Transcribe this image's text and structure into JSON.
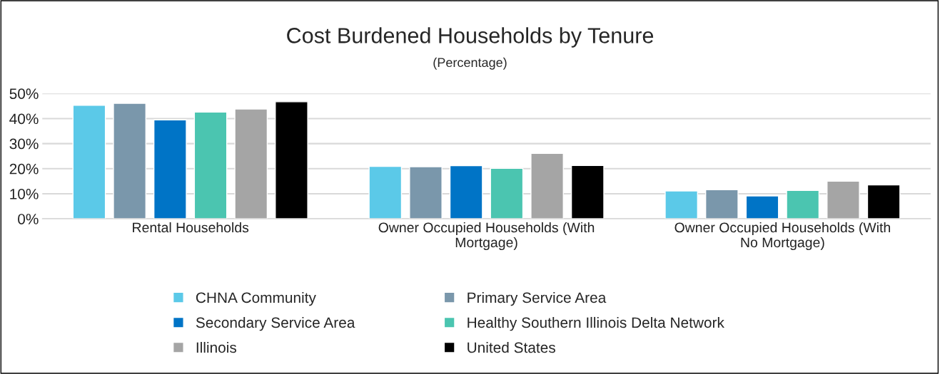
{
  "chart_data": {
    "type": "bar",
    "title": "Cost Burdened Households by Tenure",
    "subtitle": "(Percentage)",
    "categories": [
      "Rental Households",
      "Owner Occupied Households (With\nMortgage)",
      "Owner Occupied Households (With\nNo Mortgage)"
    ],
    "series": [
      {
        "name": "CHNA Community",
        "color": "#5bc9e8",
        "values": [
          45.3,
          20.9,
          11.1
        ]
      },
      {
        "name": "Primary Service Area",
        "color": "#7a97ab",
        "values": [
          46.1,
          20.8,
          11.6
        ]
      },
      {
        "name": "Secondary Service Area",
        "color": "#0074c6",
        "values": [
          39.5,
          21.2,
          9.1
        ]
      },
      {
        "name": "Healthy Southern Illinois Delta Network",
        "color": "#4bc5b0",
        "values": [
          42.6,
          20.1,
          11.3
        ]
      },
      {
        "name": "Illinois",
        "color": "#a5a5a5",
        "values": [
          43.8,
          26.1,
          15.0
        ]
      },
      {
        "name": "United States",
        "color": "#000000",
        "values": [
          46.7,
          21.3,
          13.5
        ]
      }
    ],
    "ylim": [
      0,
      50
    ],
    "yticks": [
      {
        "value": 0,
        "label": "0%"
      },
      {
        "value": 10,
        "label": "10%"
      },
      {
        "value": 20,
        "label": "20%"
      },
      {
        "value": 30,
        "label": "30%"
      },
      {
        "value": 40,
        "label": "40%"
      },
      {
        "value": 50,
        "label": "50%"
      }
    ],
    "grid": "y",
    "legend": "bottom"
  }
}
